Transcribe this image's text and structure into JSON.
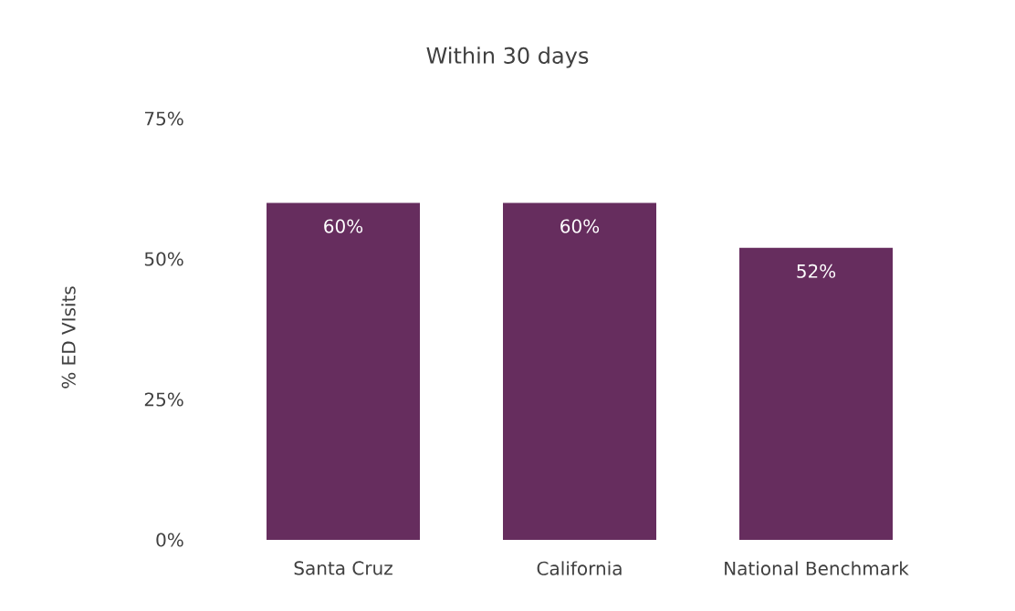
{
  "chart_data": {
    "type": "bar",
    "title": "Within 30 days",
    "ylabel": "% ED VIsits",
    "categories": [
      "Santa Cruz",
      "California",
      "National Benchmark"
    ],
    "values": [
      60,
      60,
      52
    ],
    "color": "#662d5e",
    "value_labels": [
      "60%",
      "60%",
      "52%"
    ],
    "ylim": [
      0,
      75
    ],
    "yticks": [
      {
        "value": 0,
        "label": "0%"
      },
      {
        "value": 25,
        "label": "25%"
      },
      {
        "value": 50,
        "label": "50%"
      },
      {
        "value": 75,
        "label": "75%"
      }
    ]
  }
}
